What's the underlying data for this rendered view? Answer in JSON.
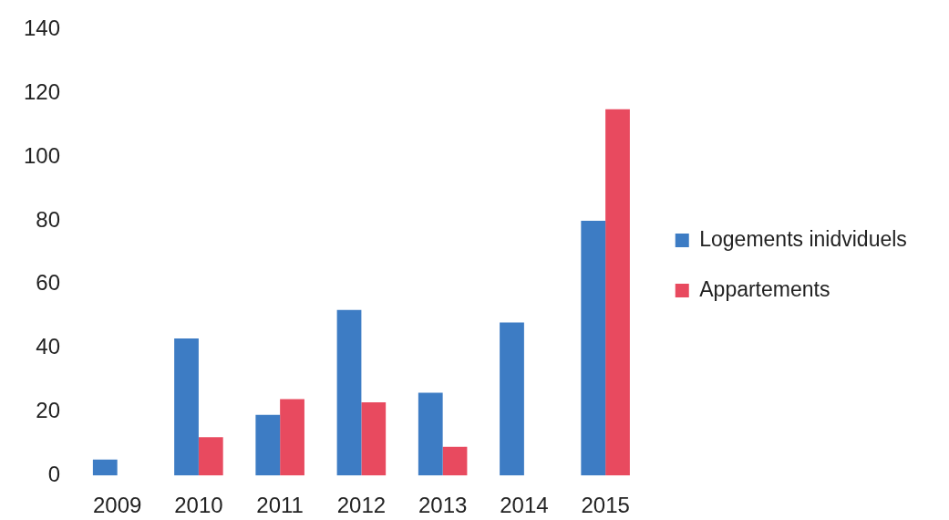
{
  "chart_data": {
    "type": "bar",
    "categories": [
      "2009",
      "2010",
      "2011",
      "2012",
      "2013",
      "2014",
      "2015"
    ],
    "series": [
      {
        "name": "Logements inidviduels",
        "color": "#3d7cc4",
        "values": [
          5,
          43,
          19,
          52,
          26,
          48,
          80
        ]
      },
      {
        "name": "Appartements",
        "color": "#e84a5f",
        "values": [
          null,
          12,
          24,
          23,
          9,
          null,
          115
        ]
      }
    ],
    "ylim": [
      0,
      140
    ],
    "yticks": [
      0,
      20,
      40,
      60,
      80,
      100,
      120,
      140
    ],
    "grid": false,
    "legend": "right"
  }
}
